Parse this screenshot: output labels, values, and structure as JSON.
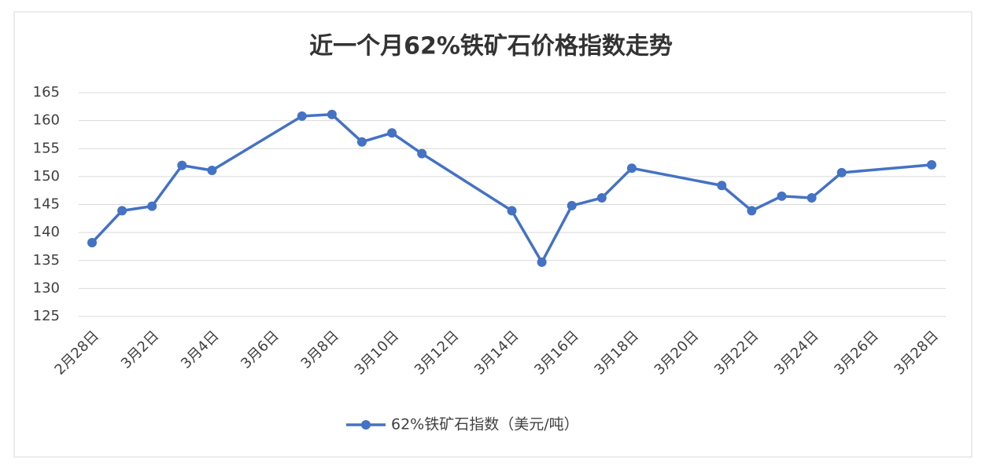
{
  "chart_data": {
    "type": "line",
    "title": "近一个月62%铁矿石价格指数走势",
    "categories": [
      "2月28日",
      null,
      "3月2日",
      null,
      "3月4日",
      null,
      "3月6日",
      null,
      "3月8日",
      null,
      "3月10日",
      null,
      "3月12日",
      null,
      "3月14日",
      null,
      "3月16日",
      null,
      "3月18日",
      null,
      "3月20日",
      null,
      "3月22日",
      null,
      "3月24日",
      null,
      "3月26日",
      null,
      "3月28日"
    ],
    "series": [
      {
        "name": "62%铁矿石指数（美元/吨）",
        "color": "#4472c4",
        "values": [
          138.2,
          143.9,
          144.7,
          152.0,
          151.1,
          null,
          null,
          160.8,
          161.1,
          156.2,
          157.8,
          154.1,
          null,
          null,
          143.9,
          134.7,
          144.8,
          146.2,
          151.5,
          null,
          null,
          148.4,
          143.9,
          146.5,
          146.2,
          150.7,
          null,
          null,
          152.1
        ]
      }
    ],
    "ylim": [
      125,
      165
    ],
    "yticks": [
      125,
      130,
      135,
      140,
      145,
      150,
      155,
      160,
      165
    ],
    "grid": true,
    "legend": "bottom"
  }
}
